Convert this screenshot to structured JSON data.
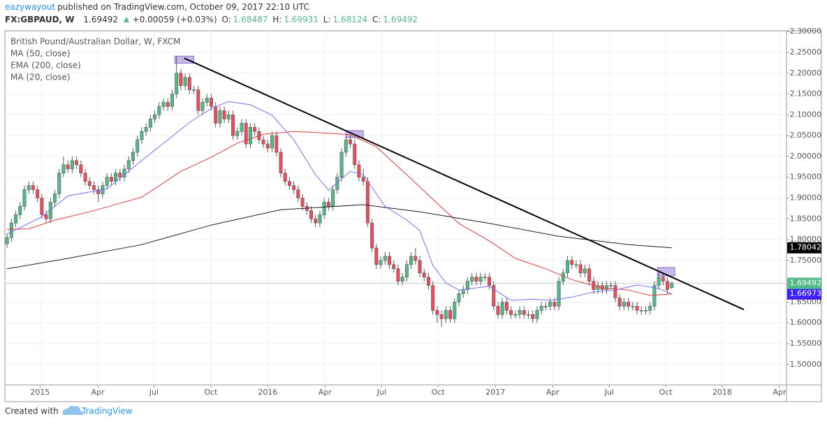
{
  "header": {
    "author": "eazywayout",
    "published": "published on TradingView.com, October 09, 2017 22:10 UTC",
    "symbol": "FX:GBPAUD, W",
    "change": "+0.00059 (+0.03%)",
    "o": "O:",
    "h": "H:",
    "l": "L:",
    "c": "C:"
  },
  "footer": {
    "created": "Created with",
    "brand": "TradingView"
  },
  "chart_data": {
    "type": "candlestick",
    "title": "British Pound/Australian Dollar, W, FXCM",
    "up_color": "#53b987",
    "down_color": "#eb4d5c",
    "grid": true,
    "xlim": [
      -0.5,
      179.4
    ],
    "ylim": [
      1.451,
      2.302
    ],
    "xticks": [
      {
        "value": 7.6,
        "label": "2015"
      },
      {
        "value": 20.9,
        "label": "Apr"
      },
      {
        "value": 33.8,
        "label": "Jul"
      },
      {
        "value": 46.9,
        "label": "Oct"
      },
      {
        "value": 60,
        "label": "2016"
      },
      {
        "value": 73.2,
        "label": "Apr"
      },
      {
        "value": 86.2,
        "label": "Jul"
      },
      {
        "value": 99.2,
        "label": "Oct"
      },
      {
        "value": 112.4,
        "label": "2017"
      },
      {
        "value": 125.6,
        "label": "Apr"
      },
      {
        "value": 138.6,
        "label": "Jul"
      },
      {
        "value": 151.6,
        "label": "Oct"
      },
      {
        "value": 164.6,
        "label": "2018"
      },
      {
        "value": 177.8,
        "label": "Apr"
      }
    ],
    "yticks": [
      {
        "value": 2.3,
        "label": "2.30000"
      },
      {
        "value": 2.25,
        "label": "2.25000"
      },
      {
        "value": 2.2,
        "label": "2.20000"
      },
      {
        "value": 2.15,
        "label": "2.15000"
      },
      {
        "value": 2.1,
        "label": "2.10000"
      },
      {
        "value": 2.05,
        "label": "2.05000"
      },
      {
        "value": 2,
        "label": "2.00000"
      },
      {
        "value": 1.95,
        "label": "1.95000"
      },
      {
        "value": 1.9,
        "label": "1.90000"
      },
      {
        "value": 1.85,
        "label": "1.85000"
      },
      {
        "value": 1.8,
        "label": "1.80000"
      },
      {
        "value": 1.75,
        "label": "1.75000"
      },
      {
        "value": 1.7,
        "label": "1.70000"
      },
      {
        "value": 1.65,
        "label": "1.65000"
      },
      {
        "value": 1.6,
        "label": "1.60000"
      },
      {
        "value": 1.55,
        "label": "1.55000"
      },
      {
        "value": 1.5,
        "label": "1.50000"
      }
    ],
    "ohlc": [
      [
        1.79,
        1.815,
        1.78,
        1.805
      ],
      [
        1.805,
        1.85,
        1.795,
        1.84
      ],
      [
        1.84,
        1.87,
        1.83,
        1.86
      ],
      [
        1.86,
        1.89,
        1.85,
        1.88
      ],
      [
        1.88,
        1.93,
        1.87,
        1.92
      ],
      [
        1.92,
        1.94,
        1.91,
        1.93
      ],
      [
        1.93,
        1.94,
        1.91,
        1.92
      ],
      [
        1.92,
        1.93,
        1.89,
        1.9
      ],
      [
        1.9,
        1.91,
        1.85,
        1.86
      ],
      [
        1.86,
        1.87,
        1.84,
        1.85
      ],
      [
        1.85,
        1.9,
        1.84,
        1.89
      ],
      [
        1.89,
        1.92,
        1.88,
        1.91
      ],
      [
        1.91,
        1.97,
        1.9,
        1.96
      ],
      [
        1.96,
        2.0,
        1.95,
        1.98
      ],
      [
        1.98,
        1.99,
        1.96,
        1.97
      ],
      [
        1.97,
        2.0,
        1.96,
        1.99
      ],
      [
        1.99,
        2.0,
        1.97,
        1.98
      ],
      [
        1.98,
        1.99,
        1.95,
        1.96
      ],
      [
        1.96,
        1.97,
        1.93,
        1.94
      ],
      [
        1.94,
        1.95,
        1.92,
        1.93
      ],
      [
        1.93,
        1.94,
        1.91,
        1.92
      ],
      [
        1.92,
        1.93,
        1.89,
        1.91
      ],
      [
        1.91,
        1.94,
        1.9,
        1.93
      ],
      [
        1.93,
        1.96,
        1.92,
        1.95
      ],
      [
        1.95,
        1.96,
        1.93,
        1.94
      ],
      [
        1.94,
        1.97,
        1.93,
        1.96
      ],
      [
        1.96,
        1.97,
        1.94,
        1.95
      ],
      [
        1.95,
        1.98,
        1.94,
        1.97
      ],
      [
        1.97,
        2.0,
        1.96,
        1.99
      ],
      [
        1.99,
        2.02,
        1.98,
        2.01
      ],
      [
        2.01,
        2.05,
        2.0,
        2.04
      ],
      [
        2.04,
        2.07,
        2.03,
        2.06
      ],
      [
        2.06,
        2.08,
        2.05,
        2.07
      ],
      [
        2.07,
        2.1,
        2.06,
        2.09
      ],
      [
        2.09,
        2.11,
        2.08,
        2.1
      ],
      [
        2.1,
        2.13,
        2.09,
        2.12
      ],
      [
        2.12,
        2.14,
        2.11,
        2.13
      ],
      [
        2.13,
        2.14,
        2.11,
        2.12
      ],
      [
        2.12,
        2.16,
        2.11,
        2.15
      ],
      [
        2.15,
        2.24,
        2.14,
        2.2
      ],
      [
        2.2,
        2.21,
        2.16,
        2.17
      ],
      [
        2.17,
        2.2,
        2.16,
        2.19
      ],
      [
        2.19,
        2.2,
        2.15,
        2.16
      ],
      [
        2.16,
        2.17,
        2.15,
        2.16
      ],
      [
        2.16,
        2.17,
        2.1,
        2.11
      ],
      [
        2.11,
        2.14,
        2.1,
        2.13
      ],
      [
        2.13,
        2.15,
        2.12,
        2.14
      ],
      [
        2.14,
        2.15,
        2.11,
        2.12
      ],
      [
        2.12,
        2.13,
        2.07,
        2.08
      ],
      [
        2.08,
        2.12,
        2.07,
        2.11
      ],
      [
        2.11,
        2.12,
        2.08,
        2.09
      ],
      [
        2.09,
        2.11,
        2.08,
        2.1
      ],
      [
        2.1,
        2.11,
        2.04,
        2.05
      ],
      [
        2.05,
        2.07,
        2.04,
        2.06
      ],
      [
        2.06,
        2.09,
        2.05,
        2.08
      ],
      [
        2.08,
        2.09,
        2.02,
        2.03
      ],
      [
        2.03,
        2.08,
        2.02,
        2.07
      ],
      [
        2.07,
        2.08,
        2.05,
        2.06
      ],
      [
        2.06,
        2.07,
        2.03,
        2.04
      ],
      [
        2.04,
        2.05,
        2.02,
        2.03
      ],
      [
        2.03,
        2.04,
        2.01,
        2.02
      ],
      [
        2.02,
        2.06,
        2.01,
        2.05
      ],
      [
        2.05,
        2.06,
        2.0,
        2.01
      ],
      [
        2.01,
        2.02,
        1.95,
        1.96
      ],
      [
        1.96,
        1.97,
        1.93,
        1.94
      ],
      [
        1.94,
        1.95,
        1.92,
        1.93
      ],
      [
        1.93,
        1.94,
        1.91,
        1.92
      ],
      [
        1.92,
        1.93,
        1.89,
        1.9
      ],
      [
        1.9,
        1.91,
        1.87,
        1.88
      ],
      [
        1.88,
        1.89,
        1.86,
        1.87
      ],
      [
        1.87,
        1.88,
        1.84,
        1.85
      ],
      [
        1.85,
        1.86,
        1.83,
        1.84
      ],
      [
        1.84,
        1.87,
        1.83,
        1.86
      ],
      [
        1.86,
        1.9,
        1.85,
        1.89
      ],
      [
        1.89,
        1.9,
        1.87,
        1.88
      ],
      [
        1.88,
        1.93,
        1.87,
        1.92
      ],
      [
        1.92,
        1.96,
        1.91,
        1.95
      ],
      [
        1.95,
        2.02,
        1.94,
        2.01
      ],
      [
        2.01,
        2.05,
        2.0,
        2.04
      ],
      [
        2.04,
        2.05,
        2.02,
        2.03
      ],
      [
        2.03,
        2.04,
        1.97,
        1.98
      ],
      [
        1.98,
        1.99,
        1.94,
        1.95
      ],
      [
        1.95,
        1.97,
        1.93,
        1.94
      ],
      [
        1.94,
        1.95,
        1.83,
        1.84
      ],
      [
        1.84,
        1.85,
        1.77,
        1.78
      ],
      [
        1.78,
        1.79,
        1.73,
        1.74
      ],
      [
        1.74,
        1.76,
        1.73,
        1.75
      ],
      [
        1.75,
        1.77,
        1.74,
        1.76
      ],
      [
        1.76,
        1.77,
        1.73,
        1.74
      ],
      [
        1.74,
        1.75,
        1.72,
        1.73
      ],
      [
        1.73,
        1.74,
        1.69,
        1.7
      ],
      [
        1.7,
        1.72,
        1.69,
        1.71
      ],
      [
        1.71,
        1.75,
        1.7,
        1.74
      ],
      [
        1.74,
        1.77,
        1.73,
        1.76
      ],
      [
        1.76,
        1.78,
        1.74,
        1.75
      ],
      [
        1.75,
        1.76,
        1.71,
        1.72
      ],
      [
        1.72,
        1.73,
        1.7,
        1.71
      ],
      [
        1.71,
        1.72,
        1.68,
        1.69
      ],
      [
        1.69,
        1.7,
        1.62,
        1.63
      ],
      [
        1.63,
        1.64,
        1.6,
        1.62
      ],
      [
        1.62,
        1.63,
        1.59,
        1.61
      ],
      [
        1.61,
        1.64,
        1.6,
        1.63
      ],
      [
        1.63,
        1.64,
        1.6,
        1.61
      ],
      [
        1.61,
        1.66,
        1.6,
        1.65
      ],
      [
        1.65,
        1.68,
        1.64,
        1.67
      ],
      [
        1.67,
        1.69,
        1.66,
        1.68
      ],
      [
        1.68,
        1.71,
        1.67,
        1.7
      ],
      [
        1.7,
        1.72,
        1.69,
        1.71
      ],
      [
        1.71,
        1.72,
        1.69,
        1.7
      ],
      [
        1.7,
        1.72,
        1.69,
        1.71
      ],
      [
        1.71,
        1.72,
        1.7,
        1.71
      ],
      [
        1.71,
        1.72,
        1.68,
        1.69
      ],
      [
        1.69,
        1.7,
        1.63,
        1.64
      ],
      [
        1.64,
        1.65,
        1.61,
        1.62
      ],
      [
        1.62,
        1.66,
        1.61,
        1.65
      ],
      [
        1.65,
        1.66,
        1.62,
        1.63
      ],
      [
        1.63,
        1.64,
        1.61,
        1.62
      ],
      [
        1.62,
        1.63,
        1.61,
        1.62
      ],
      [
        1.62,
        1.64,
        1.61,
        1.63
      ],
      [
        1.63,
        1.64,
        1.61,
        1.62
      ],
      [
        1.62,
        1.63,
        1.61,
        1.62
      ],
      [
        1.62,
        1.63,
        1.6,
        1.61
      ],
      [
        1.61,
        1.64,
        1.6,
        1.63
      ],
      [
        1.63,
        1.65,
        1.62,
        1.64
      ],
      [
        1.64,
        1.65,
        1.63,
        1.64
      ],
      [
        1.64,
        1.66,
        1.63,
        1.65
      ],
      [
        1.65,
        1.66,
        1.63,
        1.64
      ],
      [
        1.64,
        1.71,
        1.63,
        1.7
      ],
      [
        1.7,
        1.73,
        1.69,
        1.72
      ],
      [
        1.72,
        1.76,
        1.71,
        1.75
      ],
      [
        1.75,
        1.76,
        1.73,
        1.74
      ],
      [
        1.74,
        1.75,
        1.73,
        1.74
      ],
      [
        1.74,
        1.75,
        1.71,
        1.72
      ],
      [
        1.72,
        1.74,
        1.71,
        1.73
      ],
      [
        1.73,
        1.74,
        1.69,
        1.7
      ],
      [
        1.7,
        1.71,
        1.67,
        1.68
      ],
      [
        1.68,
        1.7,
        1.67,
        1.69
      ],
      [
        1.69,
        1.7,
        1.67,
        1.68
      ],
      [
        1.68,
        1.7,
        1.67,
        1.69
      ],
      [
        1.69,
        1.7,
        1.68,
        1.69
      ],
      [
        1.69,
        1.7,
        1.65,
        1.66
      ],
      [
        1.66,
        1.67,
        1.63,
        1.64
      ],
      [
        1.64,
        1.66,
        1.63,
        1.65
      ],
      [
        1.65,
        1.66,
        1.63,
        1.64
      ],
      [
        1.64,
        1.65,
        1.63,
        1.64
      ],
      [
        1.64,
        1.65,
        1.62,
        1.63
      ],
      [
        1.63,
        1.64,
        1.62,
        1.63
      ],
      [
        1.63,
        1.64,
        1.62,
        1.63
      ],
      [
        1.63,
        1.65,
        1.62,
        1.64
      ],
      [
        1.64,
        1.7,
        1.63,
        1.69
      ],
      [
        1.69,
        1.72,
        1.68,
        1.71
      ],
      [
        1.71,
        1.72,
        1.69,
        1.7
      ],
      [
        1.7,
        1.71,
        1.67,
        1.68
      ],
      [
        1.68487,
        1.69931,
        1.68124,
        1.69492
      ]
    ],
    "series": [
      {
        "name": "MA (50, close)",
        "color": "#e03a3a",
        "label_color": "#e0001c",
        "x": [
          0,
          5,
          11,
          19,
          31,
          40,
          47,
          53,
          59,
          66,
          72,
          79,
          85,
          92,
          98,
          104,
          111,
          117,
          124,
          130,
          137,
          143,
          148,
          153
        ],
        "values": [
          1.825,
          1.826,
          1.847,
          1.867,
          1.902,
          1.964,
          1.998,
          2.032,
          2.053,
          2.06,
          2.057,
          2.052,
          2.023,
          1.956,
          1.897,
          1.839,
          1.797,
          1.755,
          1.73,
          1.704,
          1.684,
          1.679,
          1.666,
          1.66941
        ]
      },
      {
        "name": "EMA (200, close)",
        "color": "#1e1e1e",
        "label_color": "#000000",
        "x": [
          0,
          14,
          31,
          47,
          63,
          71,
          82,
          95,
          111,
          127,
          143,
          153
        ],
        "values": [
          1.73,
          1.755,
          1.788,
          1.835,
          1.872,
          1.877,
          1.884,
          1.867,
          1.839,
          1.808,
          1.788,
          1.78042
        ]
      },
      {
        "name": "MA (20, close)",
        "color": "#7a6cf0",
        "label_color": "#3a20ff",
        "x": [
          0,
          8,
          14,
          23,
          31,
          37,
          42,
          47,
          51,
          56,
          61,
          66,
          71,
          74,
          79,
          82,
          87,
          92,
          95,
          98,
          101,
          104,
          111,
          116,
          121,
          125,
          130,
          135,
          140,
          145,
          150,
          153
        ],
        "values": [
          1.813,
          1.855,
          1.905,
          1.922,
          1.99,
          2.04,
          2.082,
          2.115,
          2.132,
          2.124,
          2.099,
          2.04,
          1.956,
          1.919,
          1.964,
          1.956,
          1.88,
          1.847,
          1.822,
          1.738,
          1.696,
          1.679,
          1.688,
          1.654,
          1.657,
          1.654,
          1.662,
          1.674,
          1.679,
          1.691,
          1.683,
          1.66973
        ]
      }
    ],
    "trendline": {
      "color": "#000000",
      "x": [
        40.8,
        169.6
      ],
      "y": [
        2.236,
        1.632
      ]
    },
    "zones": [
      {
        "x": [
          38.6,
          43
        ],
        "y": [
          2.224,
          2.241
        ]
      },
      {
        "x": [
          78,
          82
        ],
        "y": [
          2.045,
          2.062
        ]
      },
      {
        "x": [
          149.7,
          153.7
        ],
        "y": [
          1.713,
          1.733
        ]
      }
    ]
  }
}
